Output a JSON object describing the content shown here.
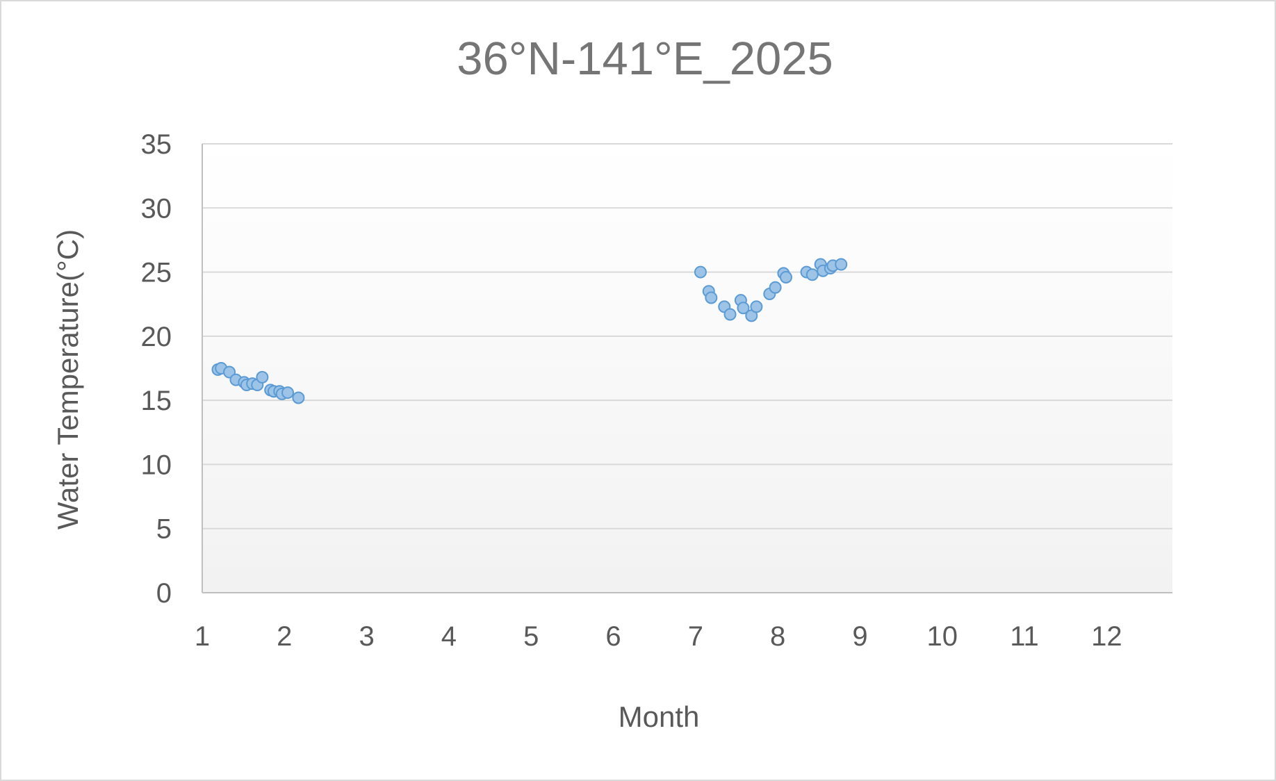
{
  "chart_data": {
    "type": "scatter",
    "title": "36°N-141°E_2025",
    "xlabel": "Month",
    "ylabel": "Water Temperature(°C)",
    "xlim": [
      1,
      12.8
    ],
    "ylim": [
      0,
      35
    ],
    "x_ticks": [
      1,
      2,
      3,
      4,
      5,
      6,
      7,
      8,
      9,
      10,
      11,
      12
    ],
    "y_ticks": [
      0,
      5,
      10,
      15,
      20,
      25,
      30,
      35
    ],
    "grid": true,
    "legend": "none",
    "colors": {
      "marker_fill": "#9dc3e6",
      "marker_stroke": "#5b9bd5"
    },
    "series": [
      {
        "points": [
          [
            1.19,
            17.4
          ],
          [
            1.23,
            17.5
          ],
          [
            1.33,
            17.2
          ],
          [
            1.41,
            16.6
          ],
          [
            1.51,
            16.4
          ],
          [
            1.54,
            16.2
          ],
          [
            1.61,
            16.3
          ],
          [
            1.67,
            16.2
          ],
          [
            1.73,
            16.8
          ],
          [
            1.83,
            15.8
          ],
          [
            1.87,
            15.7
          ],
          [
            1.94,
            15.7
          ],
          [
            1.97,
            15.5
          ],
          [
            2.04,
            15.6
          ],
          [
            2.17,
            15.2
          ],
          [
            7.06,
            25.0
          ],
          [
            7.16,
            23.5
          ],
          [
            7.19,
            23.0
          ],
          [
            7.35,
            22.3
          ],
          [
            7.42,
            21.7
          ],
          [
            7.55,
            22.8
          ],
          [
            7.58,
            22.2
          ],
          [
            7.68,
            21.6
          ],
          [
            7.74,
            22.3
          ],
          [
            7.9,
            23.3
          ],
          [
            7.97,
            23.8
          ],
          [
            8.07,
            24.9
          ],
          [
            8.1,
            24.6
          ],
          [
            8.35,
            25.0
          ],
          [
            8.42,
            24.8
          ],
          [
            8.52,
            25.6
          ],
          [
            8.55,
            25.1
          ],
          [
            8.64,
            25.3
          ],
          [
            8.67,
            25.5
          ],
          [
            8.77,
            25.6
          ]
        ]
      }
    ]
  }
}
